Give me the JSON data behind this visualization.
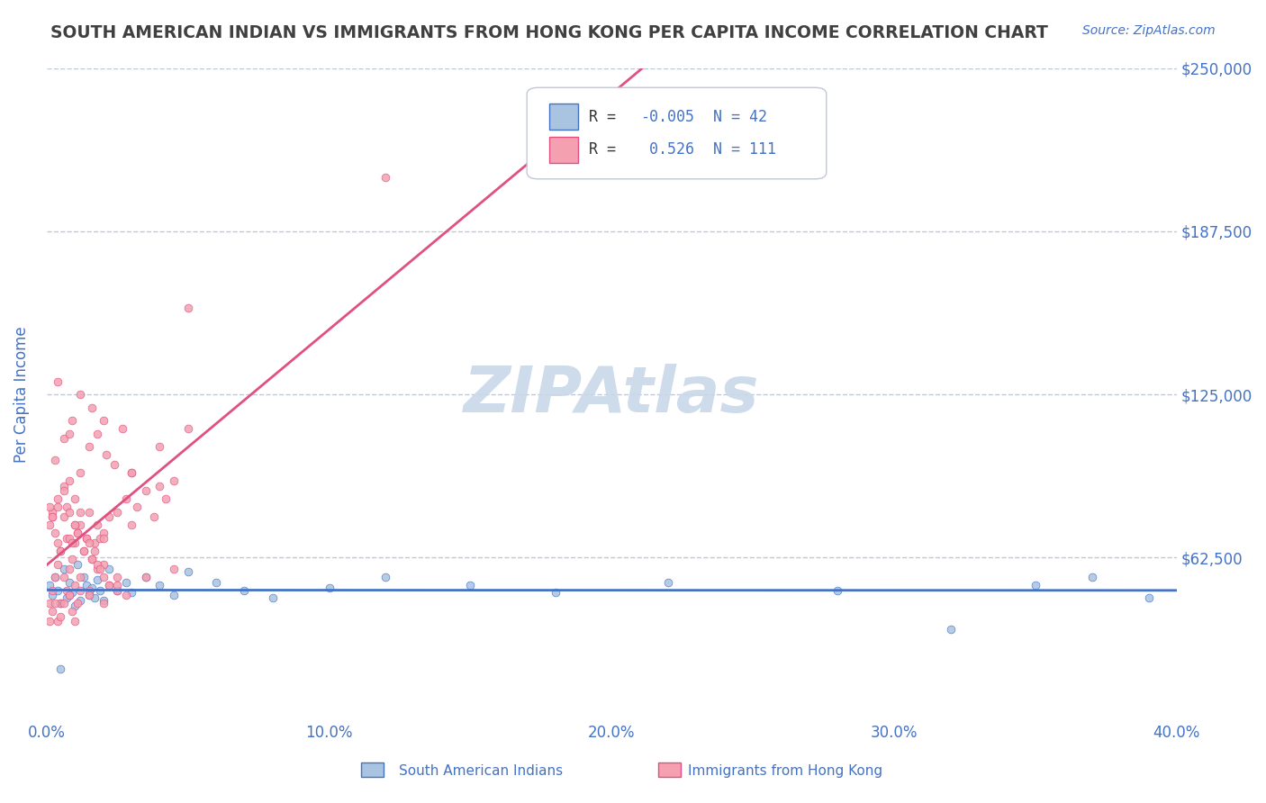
{
  "title": "SOUTH AMERICAN INDIAN VS IMMIGRANTS FROM HONG KONG PER CAPITA INCOME CORRELATION CHART",
  "source": "Source: ZipAtlas.com",
  "xlabel": "",
  "ylabel": "Per Capita Income",
  "xlim": [
    0.0,
    0.4
  ],
  "ylim": [
    0,
    250000
  ],
  "yticks": [
    0,
    62500,
    125000,
    187500,
    250000
  ],
  "ytick_labels": [
    "",
    "$62,500",
    "$125,000",
    "$187,500",
    "$250,000"
  ],
  "xticks": [
    0.0,
    0.1,
    0.2,
    0.3,
    0.4
  ],
  "xtick_labels": [
    "0.0%",
    "10.0%",
    "20.0%",
    "30.0%",
    "40.0%"
  ],
  "blue_R": -0.005,
  "blue_N": 42,
  "pink_R": 0.526,
  "pink_N": 111,
  "blue_color": "#a8c4e0",
  "pink_color": "#f4a0b0",
  "blue_line_color": "#4472c4",
  "pink_line_color": "#e05080",
  "title_color": "#404040",
  "axis_label_color": "#4472c4",
  "tick_label_color": "#4472c4",
  "legend_R_color": "#4472c4",
  "watermark_color": "#c8d8e8",
  "background_color": "#ffffff",
  "grid_color": "#c0c8d8",
  "blue_x": [
    0.001,
    0.002,
    0.003,
    0.004,
    0.005,
    0.006,
    0.007,
    0.008,
    0.009,
    0.01,
    0.011,
    0.012,
    0.013,
    0.014,
    0.015,
    0.016,
    0.017,
    0.018,
    0.019,
    0.02,
    0.022,
    0.025,
    0.028,
    0.03,
    0.035,
    0.04,
    0.045,
    0.05,
    0.06,
    0.07,
    0.08,
    0.1,
    0.12,
    0.15,
    0.18,
    0.22,
    0.28,
    0.32,
    0.35,
    0.37,
    0.39,
    0.005
  ],
  "blue_y": [
    52000,
    48000,
    55000,
    50000,
    45000,
    58000,
    47000,
    53000,
    49000,
    44000,
    60000,
    46000,
    55000,
    52000,
    48000,
    51000,
    47000,
    54000,
    50000,
    46000,
    58000,
    50000,
    53000,
    49000,
    55000,
    52000,
    48000,
    57000,
    53000,
    50000,
    47000,
    51000,
    55000,
    52000,
    49000,
    53000,
    50000,
    35000,
    52000,
    55000,
    47000,
    20000
  ],
  "pink_x": [
    0.001,
    0.002,
    0.003,
    0.004,
    0.005,
    0.006,
    0.007,
    0.008,
    0.009,
    0.01,
    0.011,
    0.012,
    0.013,
    0.014,
    0.015,
    0.016,
    0.017,
    0.018,
    0.019,
    0.02,
    0.022,
    0.025,
    0.028,
    0.03,
    0.032,
    0.035,
    0.038,
    0.04,
    0.042,
    0.045,
    0.005,
    0.008,
    0.01,
    0.012,
    0.015,
    0.018,
    0.02,
    0.022,
    0.025,
    0.028,
    0.001,
    0.002,
    0.003,
    0.004,
    0.005,
    0.006,
    0.007,
    0.008,
    0.009,
    0.01,
    0.011,
    0.012,
    0.001,
    0.002,
    0.003,
    0.004,
    0.005,
    0.006,
    0.007,
    0.008,
    0.009,
    0.01,
    0.011,
    0.012,
    0.013,
    0.014,
    0.015,
    0.016,
    0.017,
    0.018,
    0.019,
    0.02,
    0.022,
    0.025,
    0.003,
    0.006,
    0.009,
    0.012,
    0.015,
    0.018,
    0.021,
    0.024,
    0.027,
    0.03,
    0.001,
    0.002,
    0.004,
    0.006,
    0.008,
    0.01,
    0.02,
    0.004,
    0.008,
    0.012,
    0.016,
    0.02,
    0.03,
    0.04,
    0.05,
    0.002,
    0.004,
    0.006,
    0.008,
    0.01,
    0.05,
    0.12,
    0.02,
    0.015,
    0.025,
    0.035,
    0.045
  ],
  "pink_y": [
    45000,
    50000,
    55000,
    60000,
    65000,
    55000,
    70000,
    58000,
    62000,
    68000,
    72000,
    75000,
    65000,
    70000,
    80000,
    62000,
    68000,
    75000,
    70000,
    72000,
    78000,
    80000,
    85000,
    75000,
    82000,
    88000,
    78000,
    90000,
    85000,
    92000,
    45000,
    48000,
    52000,
    55000,
    50000,
    58000,
    60000,
    52000,
    55000,
    48000,
    38000,
    42000,
    45000,
    38000,
    40000,
    45000,
    50000,
    48000,
    42000,
    38000,
    45000,
    50000,
    75000,
    80000,
    72000,
    68000,
    65000,
    78000,
    82000,
    70000,
    68000,
    75000,
    72000,
    80000,
    65000,
    70000,
    68000,
    62000,
    65000,
    60000,
    58000,
    55000,
    52000,
    50000,
    100000,
    108000,
    115000,
    95000,
    105000,
    110000,
    102000,
    98000,
    112000,
    95000,
    82000,
    78000,
    85000,
    90000,
    80000,
    75000,
    70000,
    130000,
    110000,
    125000,
    120000,
    115000,
    95000,
    105000,
    112000,
    78000,
    82000,
    88000,
    92000,
    85000,
    158000,
    208000,
    45000,
    48000,
    52000,
    55000,
    58000
  ]
}
